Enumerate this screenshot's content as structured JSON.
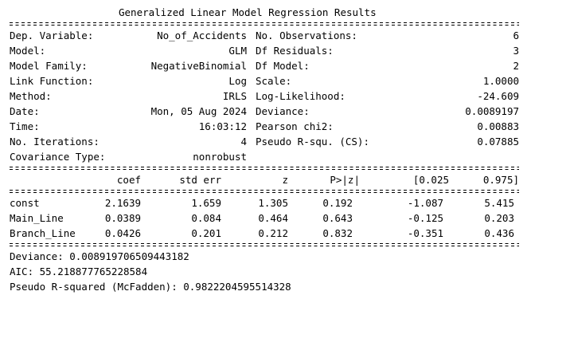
{
  "title": "Generalized Linear Model Regression Results",
  "info_left": [
    {
      "label": "Dep. Variable:",
      "value": "No_of_Accidents"
    },
    {
      "label": "Model:",
      "value": "GLM"
    },
    {
      "label": "Model Family:",
      "value": "NegativeBinomial"
    },
    {
      "label": "Link Function:",
      "value": "Log"
    },
    {
      "label": "Method:",
      "value": "IRLS"
    },
    {
      "label": "Date:",
      "value": "Mon, 05 Aug 2024"
    },
    {
      "label": "Time:",
      "value": "16:03:12"
    },
    {
      "label": "No. Iterations:",
      "value": "4"
    },
    {
      "label": "Covariance Type:",
      "value": "nonrobust"
    }
  ],
  "info_right": [
    {
      "label": "No. Observations:",
      "value": "6"
    },
    {
      "label": "Df Residuals:",
      "value": "3"
    },
    {
      "label": "Df Model:",
      "value": "2"
    },
    {
      "label": "Scale:",
      "value": "1.0000"
    },
    {
      "label": "Log-Likelihood:",
      "value": "-24.609"
    },
    {
      "label": "Deviance:",
      "value": "0.0089197"
    },
    {
      "label": "Pearson chi2:",
      "value": "0.00883"
    },
    {
      "label": "Pseudo R-squ. (CS):",
      "value": "0.07885"
    }
  ],
  "coef_headers": {
    "coef": "coef",
    "std_err": "std err",
    "z": "z",
    "p": "P>|z|",
    "ci_low": "[0.025",
    "ci_high": "0.975]"
  },
  "coef_rows": [
    {
      "name": "const",
      "coef": "2.1639",
      "std_err": "1.659",
      "z": "1.305",
      "p": "0.192",
      "ci_low": "-1.087",
      "ci_high": "5.415"
    },
    {
      "name": "Main_Line",
      "coef": "0.0389",
      "std_err": "0.084",
      "z": "0.464",
      "p": "0.643",
      "ci_low": "-0.125",
      "ci_high": "0.203"
    },
    {
      "name": "Branch_Line",
      "coef": "0.0426",
      "std_err": "0.201",
      "z": "0.212",
      "p": "0.832",
      "ci_low": "-0.351",
      "ci_high": "0.436"
    }
  ],
  "extra_output": [
    "Deviance: 0.008919706509443182",
    "AIC: 55.218877765228584",
    "Pseudo R-squared (McFadden): 0.9822204595514328"
  ]
}
